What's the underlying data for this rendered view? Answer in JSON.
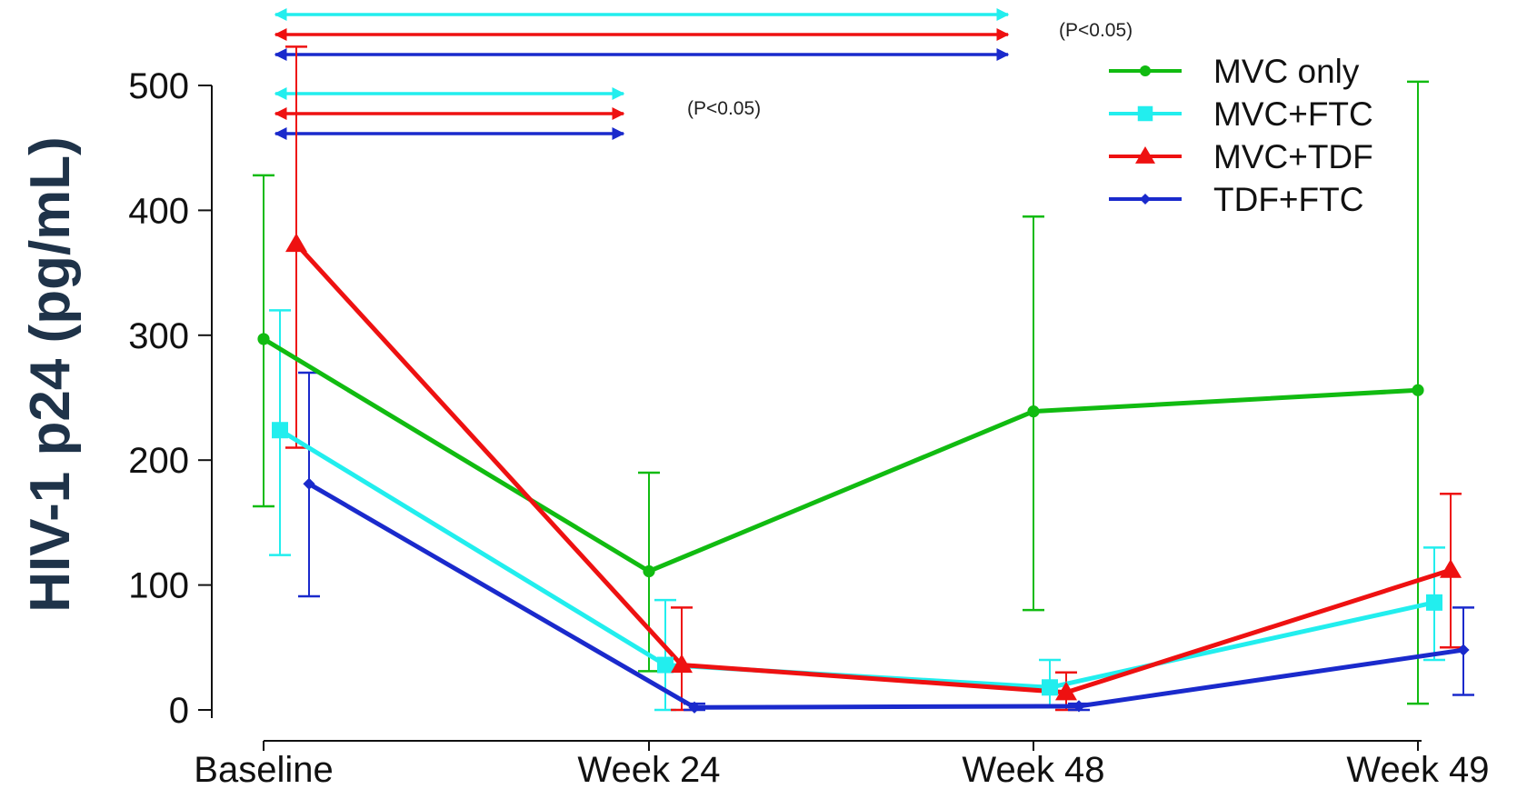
{
  "chart_data": {
    "type": "line",
    "title": "",
    "xlabel": "",
    "ylabel": "HIV-1 p24 (pg/mL)",
    "ylim": [
      0,
      500
    ],
    "yticks": [
      "0",
      "100",
      "200",
      "300",
      "400",
      "500"
    ],
    "categories": [
      "Baseline",
      "Week 24",
      "Week 48",
      "Week 49"
    ],
    "legend_position": "top-right",
    "series": [
      {
        "name": "MVC only",
        "color": "#11bb11",
        "marker": "circle",
        "values": [
          297,
          111,
          239,
          256
        ],
        "err_low": [
          163,
          31,
          80,
          5
        ],
        "err_high": [
          428,
          190,
          395,
          503
        ]
      },
      {
        "name": "MVC+FTC",
        "color": "#22eeee",
        "marker": "square",
        "values": [
          224,
          36,
          18,
          86
        ],
        "err_low": [
          124,
          0,
          2,
          40
        ],
        "err_high": [
          320,
          88,
          40,
          130
        ]
      },
      {
        "name": "MVC+TDF",
        "color": "#ee1111",
        "marker": "triangle",
        "values": [
          373,
          36,
          14,
          112
        ],
        "err_low": [
          210,
          0,
          0,
          50
        ],
        "err_high": [
          531,
          82,
          30,
          173
        ]
      },
      {
        "name": "TDF+FTC",
        "color": "#1a2acc",
        "marker": "diamond",
        "values": [
          181,
          2,
          3,
          48
        ],
        "err_low": [
          91,
          0,
          0,
          12
        ],
        "err_high": [
          270,
          5,
          5,
          82
        ]
      }
    ],
    "annotations": [
      {
        "text": "(P<0.05)",
        "from": "Baseline",
        "to": "Week 48",
        "colors": [
          "#22eeee",
          "#ee1111",
          "#1a2acc"
        ]
      },
      {
        "text": "(P<0.05)",
        "from": "Baseline",
        "to": "Week 24",
        "colors": [
          "#22eeee",
          "#ee1111",
          "#1a2acc"
        ]
      }
    ]
  }
}
